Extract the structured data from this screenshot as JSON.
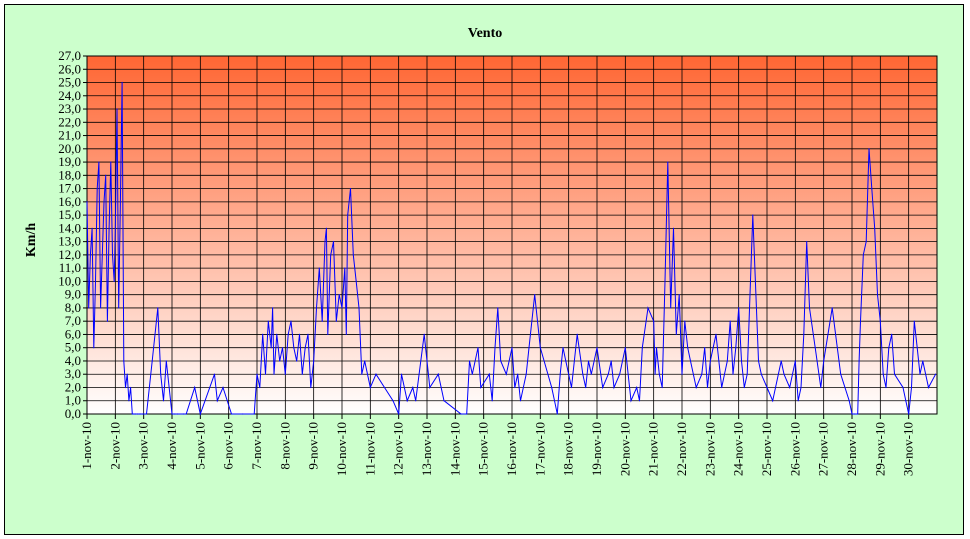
{
  "chart_data": {
    "type": "line",
    "title": "Vento",
    "xlabel": "",
    "ylabel": "Km/h",
    "ylim": [
      0,
      27
    ],
    "y_step": 1,
    "y_tick_labels": [
      "0,0",
      "1,0",
      "2,0",
      "3,0",
      "4,0",
      "5,0",
      "6,0",
      "7,0",
      "8,0",
      "9,0",
      "10,0",
      "11,0",
      "12,0",
      "13,0",
      "14,0",
      "15,0",
      "16,0",
      "17,0",
      "18,0",
      "19,0",
      "20,0",
      "21,0",
      "22,0",
      "23,0",
      "24,0",
      "25,0",
      "26,0",
      "27,0"
    ],
    "x_tick_labels": [
      "1-nov-10",
      "2-nov-10",
      "3-nov-10",
      "4-nov-10",
      "5-nov-10",
      "6-nov-10",
      "7-nov-10",
      "8-nov-10",
      "9-nov-10",
      "10-nov-10",
      "11-nov-10",
      "12-nov-10",
      "13-nov-10",
      "14-nov-10",
      "15-nov-10",
      "16-nov-10",
      "17-nov-10",
      "18-nov-10",
      "19-nov-10",
      "20-nov-10",
      "21-nov-10",
      "22-nov-10",
      "23-nov-10",
      "24-nov-10",
      "25-nov-10",
      "26-nov-10",
      "27-nov-10",
      "28-nov-10",
      "29-nov-10",
      "30-nov-10"
    ],
    "grid": true,
    "legend": "none",
    "series_color": "#0000ff",
    "plot_gradient": {
      "top": "#ff6633",
      "bottom": "#ffffff"
    },
    "series": [
      {
        "x": [
          1.0,
          1.06,
          1.12,
          1.18,
          1.24,
          1.3,
          1.36,
          1.42,
          1.48,
          1.54,
          1.6,
          1.66,
          1.72,
          1.78,
          1.84,
          1.9,
          1.96,
          2.0,
          2.06,
          2.12,
          2.18,
          2.24,
          2.3,
          2.36,
          2.42,
          2.48,
          2.54,
          2.6,
          2.66,
          2.72,
          2.78,
          2.84,
          2.9,
          2.96,
          3.1,
          3.3,
          3.5,
          3.6,
          3.7,
          3.8,
          4.0,
          4.1,
          4.2,
          4.4,
          4.5,
          4.8,
          5.0,
          5.5,
          5.6,
          5.8,
          6.1,
          6.5,
          6.9,
          7.0,
          7.1,
          7.2,
          7.3,
          7.4,
          7.5,
          7.55,
          7.6,
          7.7,
          7.8,
          7.9,
          8.0,
          8.1,
          8.2,
          8.3,
          8.4,
          8.5,
          8.6,
          8.7,
          8.8,
          8.9,
          9.0,
          9.1,
          9.2,
          9.3,
          9.4,
          9.45,
          9.5,
          9.6,
          9.7,
          9.8,
          9.9,
          10.0,
          10.1,
          10.15,
          10.2,
          10.3,
          10.4,
          10.5,
          10.6,
          10.7,
          10.8,
          11.0,
          11.2,
          11.5,
          11.8,
          12.0,
          12.1,
          12.3,
          12.5,
          12.6,
          12.9,
          13.1,
          13.4,
          13.6,
          14.2,
          14.4,
          14.5,
          14.6,
          14.8,
          14.9,
          15.2,
          15.3,
          15.4,
          15.5,
          15.6,
          15.8,
          16.0,
          16.1,
          16.2,
          16.3,
          16.5,
          16.6,
          16.8,
          17.0,
          17.4,
          17.5,
          17.6,
          17.7,
          17.8,
          17.9,
          18.1,
          18.3,
          18.5,
          18.6,
          18.7,
          18.8,
          19.0,
          19.2,
          19.4,
          19.5,
          19.6,
          19.8,
          20.0,
          20.2,
          20.4,
          20.5,
          20.6,
          20.8,
          21.0,
          21.05,
          21.1,
          21.15,
          21.2,
          21.3,
          21.4,
          21.5,
          21.6,
          21.7,
          21.8,
          21.9,
          22.0,
          22.1,
          22.2,
          22.3,
          22.5,
          22.7,
          22.8,
          22.9,
          23.0,
          23.2,
          23.4,
          23.5,
          23.6,
          23.7,
          23.8,
          23.9,
          24.0,
          24.1,
          24.2,
          24.3,
          24.5,
          24.7,
          24.8,
          25.0,
          25.2,
          25.5,
          25.6,
          25.8,
          26.0,
          26.1,
          26.2,
          26.3,
          26.4,
          26.5,
          26.7,
          26.9,
          27.0,
          27.3,
          27.6,
          27.9,
          28.0,
          28.1,
          28.2,
          28.25,
          28.3,
          28.4,
          28.5,
          28.6,
          28.7,
          28.8,
          28.9,
          29.0,
          29.1,
          29.2,
          29.3,
          29.4,
          29.5,
          29.8,
          29.9,
          30.0,
          30.1,
          30.2,
          30.3,
          30.4,
          30.5,
          30.7,
          30.95
        ],
        "y": [
          16,
          8,
          12,
          14,
          5,
          10,
          17,
          19,
          8,
          12,
          16,
          18,
          7,
          14,
          19,
          12,
          10,
          14,
          23,
          8,
          16,
          25,
          4,
          2,
          3,
          1,
          2,
          0,
          0,
          0,
          0,
          0,
          0,
          0,
          0,
          4,
          8,
          3,
          1,
          4,
          0,
          0,
          0,
          0,
          0,
          2,
          0,
          3,
          1,
          2,
          0,
          0,
          0,
          3,
          2,
          6,
          3,
          7,
          5,
          8,
          3,
          6,
          4,
          5,
          3,
          6,
          7,
          5,
          4,
          6,
          3,
          5,
          6,
          2,
          4,
          8,
          11,
          7,
          13,
          14,
          6,
          12,
          13,
          7,
          9,
          8,
          11,
          6,
          15,
          17,
          12,
          10,
          8,
          3,
          4,
          2,
          3,
          2,
          1,
          0,
          3,
          1,
          2,
          1,
          6,
          2,
          3,
          1,
          0,
          0,
          4,
          3,
          5,
          2,
          3,
          1,
          5,
          8,
          4,
          3,
          5,
          2,
          3,
          1,
          3,
          5,
          9,
          5,
          2,
          1,
          0,
          3,
          5,
          4,
          2,
          6,
          3,
          2,
          4,
          3,
          5,
          2,
          3,
          4,
          2,
          3,
          5,
          1,
          2,
          1,
          5,
          8,
          7,
          3,
          5,
          4,
          3,
          2,
          10,
          19,
          8,
          14,
          6,
          9,
          3,
          7,
          5,
          4,
          2,
          3,
          5,
          2,
          4,
          6,
          2,
          3,
          4,
          7,
          3,
          5,
          8,
          4,
          2,
          3,
          15,
          4,
          3,
          2,
          1,
          4,
          3,
          2,
          4,
          1,
          2,
          6,
          13,
          8,
          5,
          2,
          4,
          8,
          3,
          1,
          0,
          0,
          0,
          4,
          7,
          12,
          13,
          20,
          17,
          14,
          9,
          7,
          3,
          2,
          5,
          6,
          3,
          2,
          1,
          0,
          2,
          7,
          5,
          3,
          4,
          2,
          3
        ]
      }
    ]
  }
}
